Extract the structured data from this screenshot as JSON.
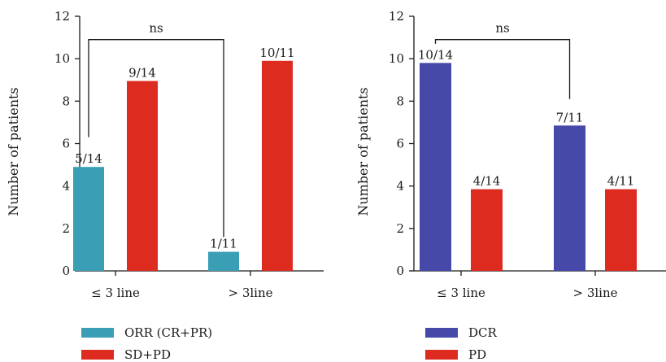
{
  "chart_data": [
    {
      "type": "bar",
      "categories": [
        "≤ 3 line",
        "> 3line"
      ],
      "ylabel": "Number of patients",
      "ylim": [
        0,
        12
      ],
      "yticks": [
        0,
        2,
        4,
        6,
        8,
        10,
        12
      ],
      "series": [
        {
          "name": "ORR (CR+PR)",
          "color": "#3a9fb5",
          "values": [
            4.9,
            0.9
          ],
          "labels": [
            "5/14",
            "1/11"
          ]
        },
        {
          "name": "SD+PD",
          "color": "#dd2b1f",
          "values": [
            8.95,
            9.9
          ],
          "labels": [
            "9/14",
            "10/11"
          ]
        }
      ],
      "annotation": "ns"
    },
    {
      "type": "bar",
      "categories": [
        "≤ 3 line",
        "> 3line"
      ],
      "ylabel": "Number of patients",
      "ylim": [
        0,
        12
      ],
      "yticks": [
        0,
        2,
        4,
        6,
        8,
        10,
        12
      ],
      "series": [
        {
          "name": "DCR",
          "color": "#4649a8",
          "values": [
            9.8,
            6.85
          ],
          "labels": [
            "10/14",
            "7/11"
          ]
        },
        {
          "name": "PD",
          "color": "#dd2b1f",
          "values": [
            3.85,
            3.85
          ],
          "labels": [
            "4/14",
            "4/11"
          ]
        }
      ],
      "annotation": "ns"
    }
  ]
}
